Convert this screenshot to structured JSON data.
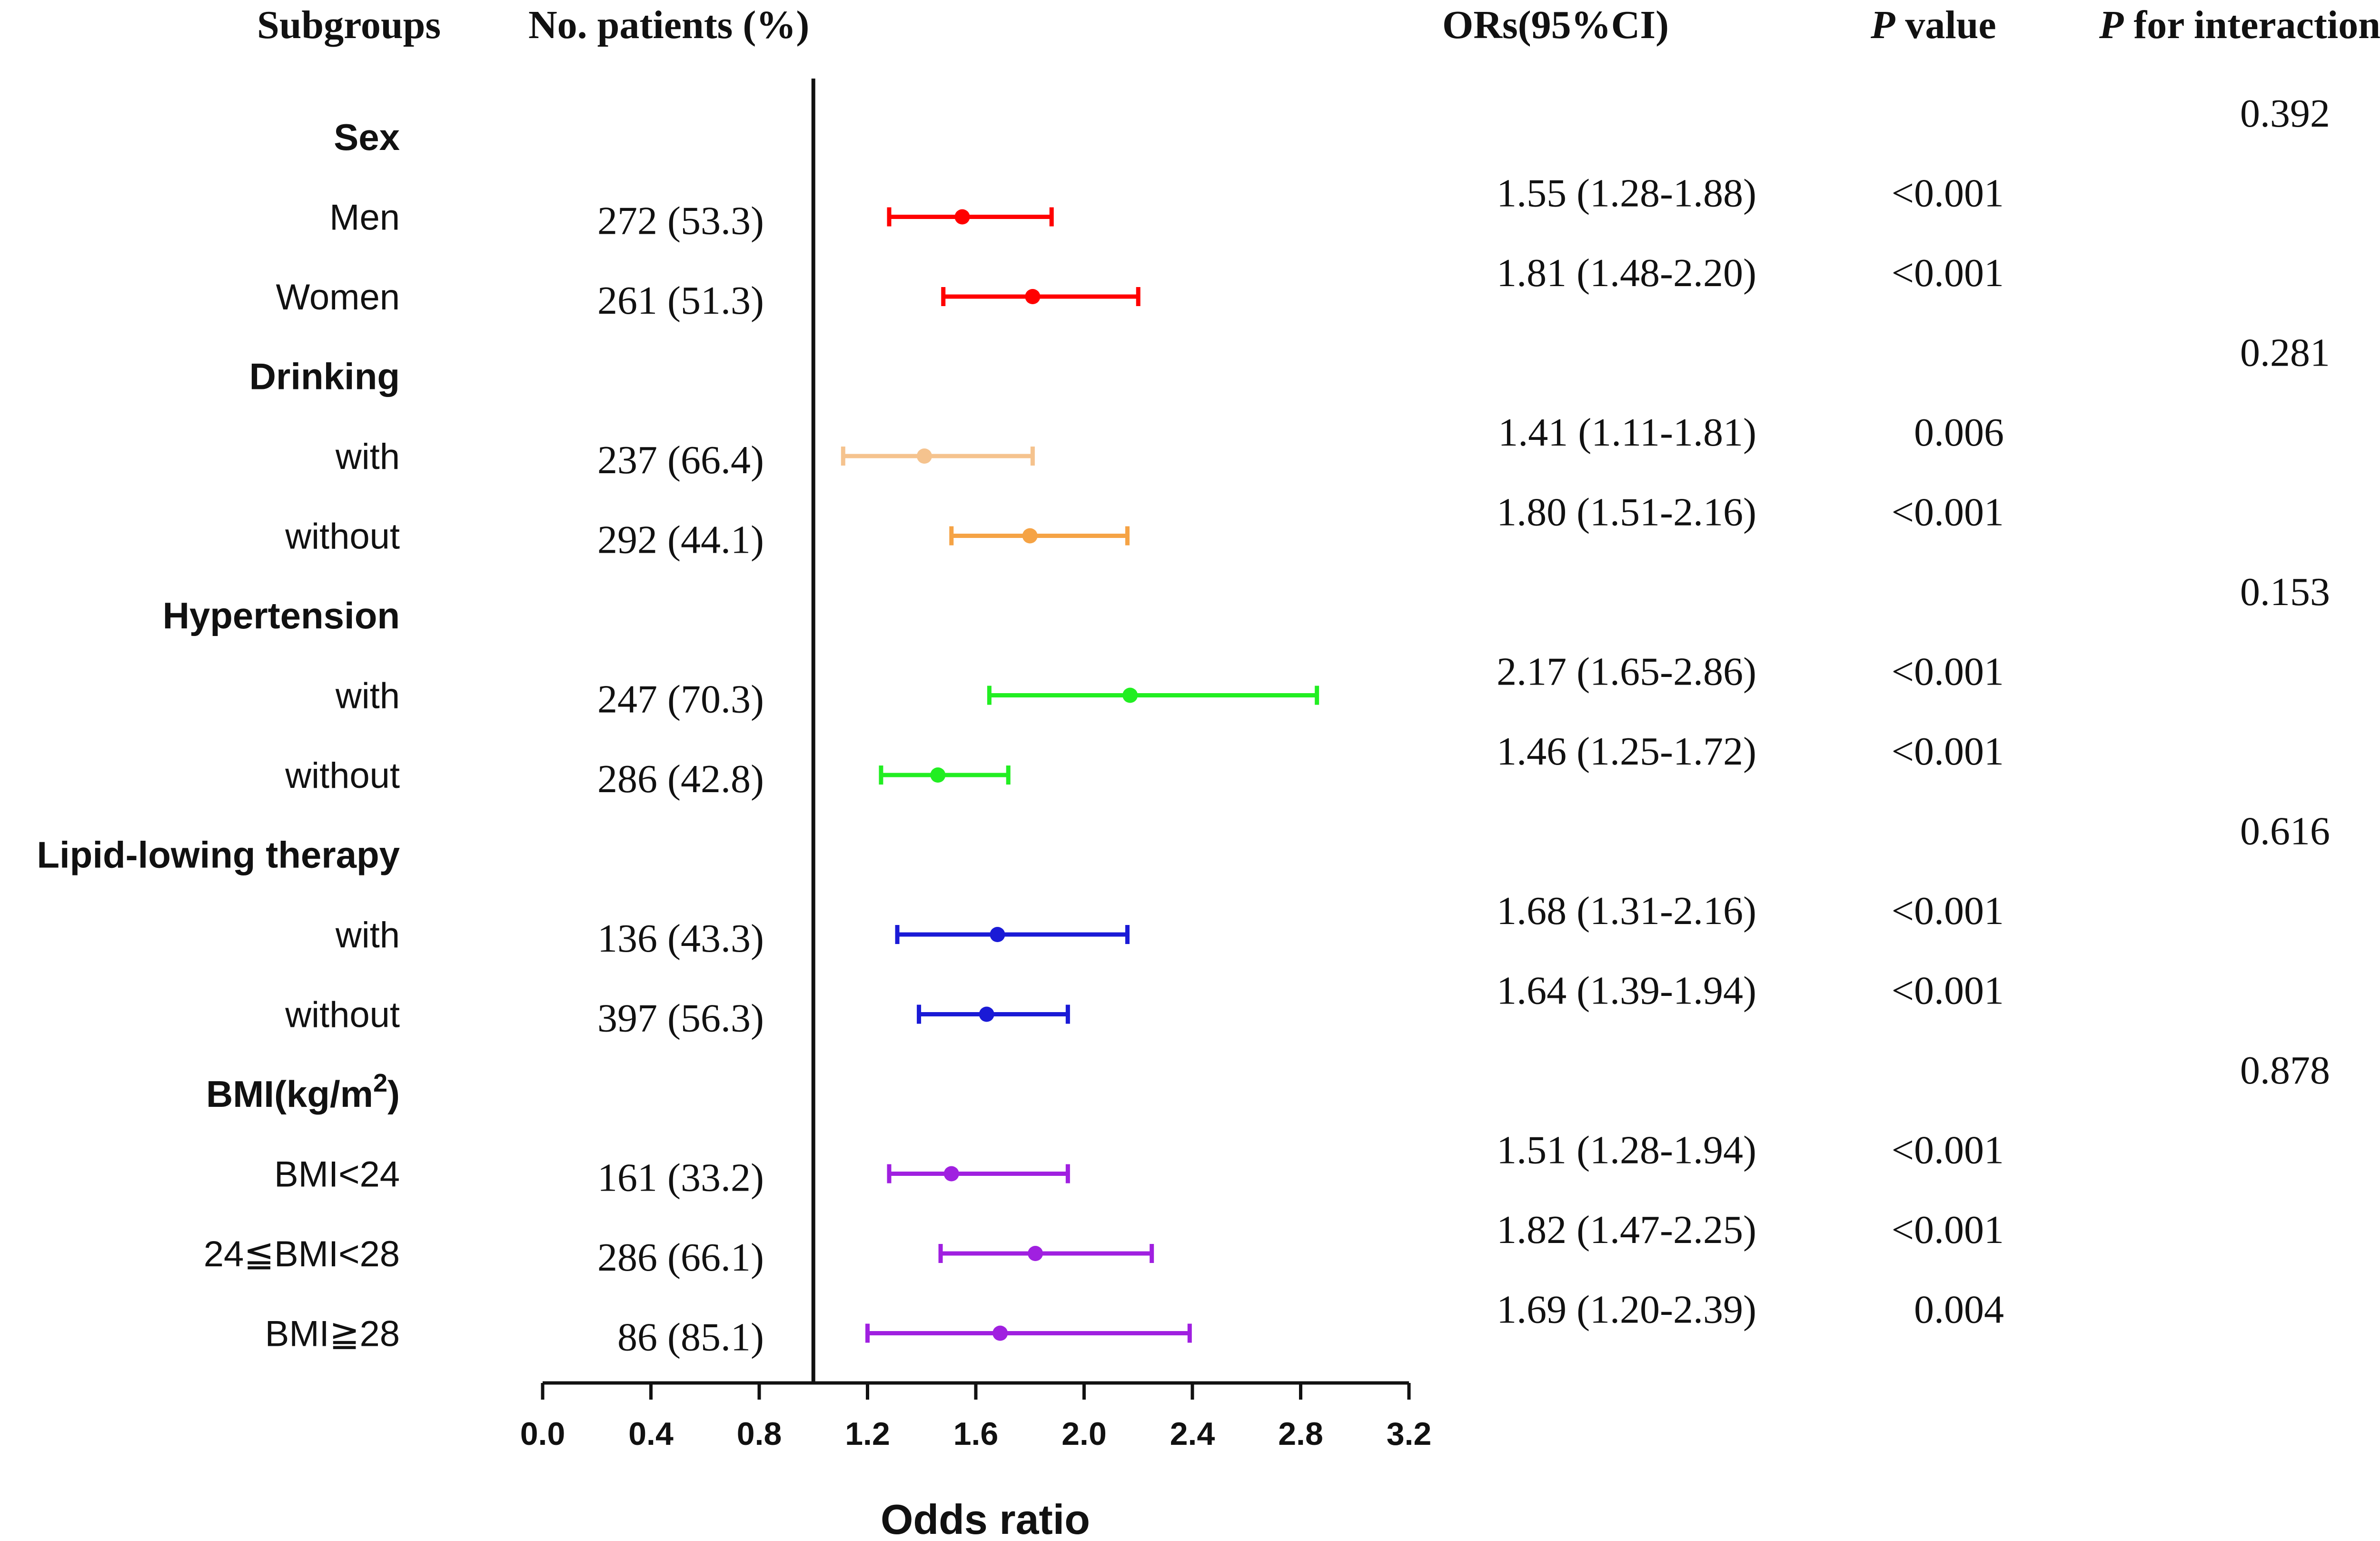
{
  "headers": {
    "subgroups": "Subgroups",
    "patients": "No. patients (%)",
    "ors": "ORs(95%CI)",
    "p_value_italic": "P",
    "p_value_rest": " value",
    "p_inter_italic": "P",
    "p_inter_rest": " for interaction"
  },
  "chart_data": {
    "type": "forest",
    "xlabel": "Odds ratio",
    "xlim": [
      0.0,
      3.2
    ],
    "reference_line": 1.0,
    "ticks": [
      "0.0",
      "0.4",
      "0.8",
      "1.2",
      "1.6",
      "2.0",
      "2.4",
      "2.8",
      "3.2"
    ],
    "groups": [
      {
        "name": "Sex",
        "p_interaction": "0.392",
        "color": "#ff0000",
        "rows": [
          {
            "label": "Men",
            "n": "272 (53.3)",
            "or": 1.55,
            "lo": 1.28,
            "hi": 1.88,
            "ci_text": "1.55 (1.28-1.88)",
            "p": "<0.001"
          },
          {
            "label": "Women",
            "n": "261 (51.3)",
            "or": 1.81,
            "lo": 1.48,
            "hi": 2.2,
            "ci_text": "1.81 (1.48-2.20)",
            "p": "<0.001"
          }
        ]
      },
      {
        "name": "Drinking",
        "p_interaction": "0.281",
        "rows": [
          {
            "label": "with",
            "n": "237 (66.4)",
            "or": 1.41,
            "lo": 1.11,
            "hi": 1.81,
            "ci_text": "1.41 (1.11-1.81)",
            "p": "0.006",
            "color": "#f5c38e"
          },
          {
            "label": "without",
            "n": "292 (44.1)",
            "or": 1.8,
            "lo": 1.51,
            "hi": 2.16,
            "ci_text": "1.80 (1.51-2.16)",
            "p": "<0.001",
            "color": "#f5a345"
          }
        ]
      },
      {
        "name": "Hypertension",
        "p_interaction": "0.153",
        "color": "#22ee22",
        "rows": [
          {
            "label": "with",
            "n": "247 (70.3)",
            "or": 2.17,
            "lo": 1.65,
            "hi": 2.86,
            "ci_text": "2.17 (1.65-2.86)",
            "p": "<0.001"
          },
          {
            "label": "without",
            "n": "286 (42.8)",
            "or": 1.46,
            "lo": 1.25,
            "hi": 1.72,
            "ci_text": "1.46 (1.25-1.72)",
            "p": "<0.001"
          }
        ]
      },
      {
        "name": "Lipid-lowing therapy",
        "p_interaction": "0.616",
        "color": "#1a1ad6",
        "rows": [
          {
            "label": "with",
            "n": "136 (43.3)",
            "or": 1.68,
            "lo": 1.31,
            "hi": 2.16,
            "ci_text": "1.68 (1.31-2.16)",
            "p": "<0.001"
          },
          {
            "label": "without",
            "n": "397 (56.3)",
            "or": 1.64,
            "lo": 1.39,
            "hi": 1.94,
            "ci_text": "1.64 (1.39-1.94)",
            "p": "<0.001"
          }
        ]
      },
      {
        "name": "BMI(kg/m",
        "name_sup": "2",
        "name_suffix": ")",
        "p_interaction": "0.878",
        "color": "#a020e0",
        "rows": [
          {
            "label": "BMI<24",
            "n": "161 (33.2)",
            "or": 1.51,
            "lo": 1.28,
            "hi": 1.94,
            "ci_text": "1.51 (1.28-1.94)",
            "p": "<0.001"
          },
          {
            "label": "24≦BMI<28",
            "n": "286 (66.1)",
            "or": 1.82,
            "lo": 1.47,
            "hi": 2.25,
            "ci_text": "1.82 (1.47-2.25)",
            "p": "<0.001"
          },
          {
            "label": "BMI≧28",
            "n": "86 (85.1)",
            "or": 1.69,
            "lo": 1.2,
            "hi": 2.39,
            "ci_text": "1.69 (1.20-2.39)",
            "p": "0.004"
          }
        ]
      }
    ]
  }
}
